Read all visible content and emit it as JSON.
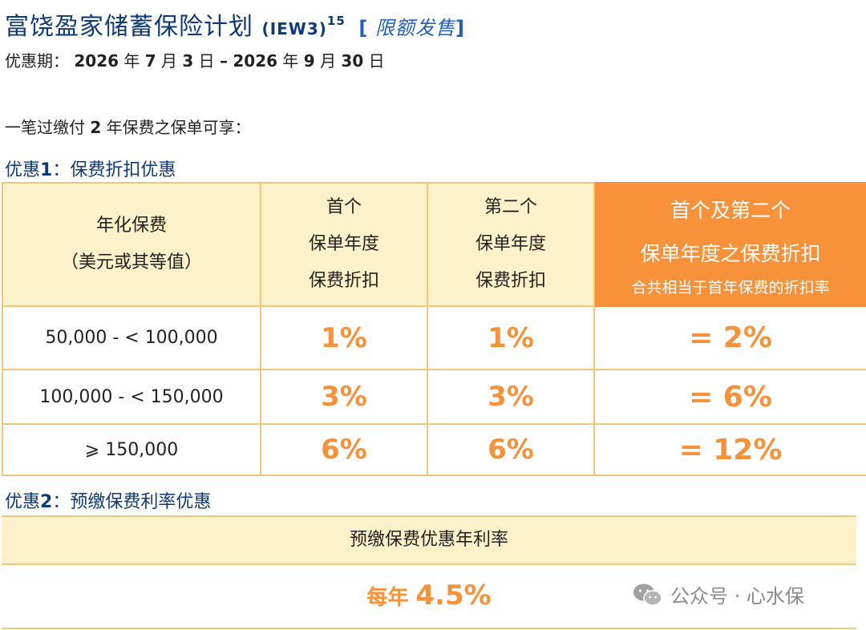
{
  "header": {
    "title": "富饶盈家储蓄保险计划",
    "code": "(IEW3)",
    "footnote": "15",
    "tag_open": "[",
    "tag": "限额发售",
    "tag_close": "]"
  },
  "period": {
    "label": "优惠期：",
    "y1": "2026",
    "u1": "年",
    "m1": "7",
    "u2": "月",
    "d1": "3",
    "u3": "日",
    "dash": "–",
    "y2": "2026",
    "u4": "年",
    "m2": "9",
    "u5": "月",
    "d2": "30",
    "u6": "日"
  },
  "intro": {
    "prefix": "一笔过缴付",
    "years": "2",
    "suffix": "年保费之保单可享："
  },
  "offer1": {
    "prefix": "优惠",
    "num": "1",
    "sep": "：",
    "name": "保费折扣优惠",
    "headers": {
      "col1_line1": "年化保费",
      "col1_line2": "（美元或其等值）",
      "col2_line1": "首个",
      "col2_line2": "保单年度",
      "col2_line3": "保费折扣",
      "col3_line1": "第二个",
      "col3_line2": "保单年度",
      "col3_line3": "保费折扣",
      "col4_line1": "首个及第二个",
      "col4_line2": "保单年度之保费折扣",
      "col4_line3": "合共相当于首年保费的折扣率"
    },
    "rows": [
      {
        "range": "50,000 - < 100,000",
        "first": "1%",
        "second": "1%",
        "total": "= 2%"
      },
      {
        "range": "100,000 - < 150,000",
        "first": "3%",
        "second": "3%",
        "total": "= 6%"
      },
      {
        "range": "⩾ 150,000",
        "first": "6%",
        "second": "6%",
        "total": "= 12%"
      }
    ]
  },
  "offer2": {
    "prefix": "优惠",
    "num": "2",
    "sep": "：",
    "name": "预缴保费利率优惠",
    "header": "预缴保费优惠年利率",
    "rate_prefix": "每年",
    "rate": "4.5%"
  },
  "watermark": {
    "text": "公众号 · 心水保",
    "icon": "wechat-icon"
  },
  "colors": {
    "navy": "#0e3a78",
    "orange": "#f7913a",
    "cream": "#fdf1c9",
    "border": "#f0c87c"
  }
}
